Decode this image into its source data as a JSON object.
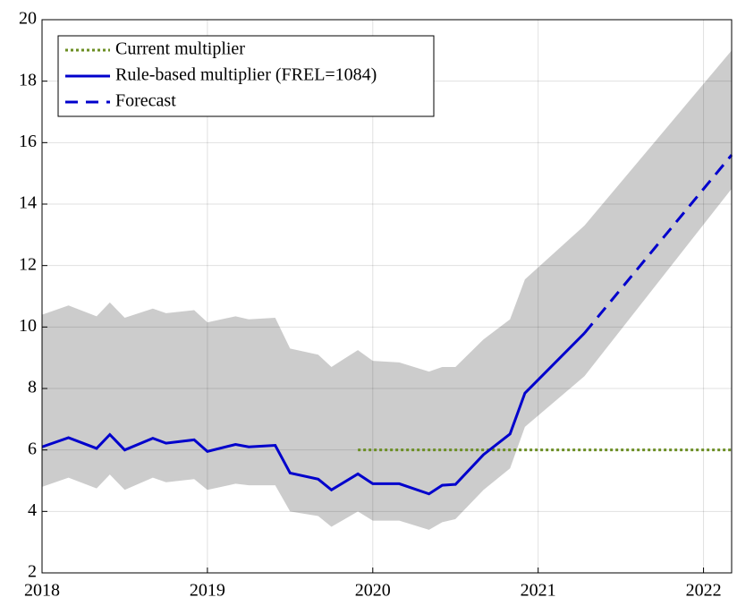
{
  "chart_data": {
    "type": "line",
    "x": [
      2018.0,
      2018.16,
      2018.33,
      2018.41,
      2018.5,
      2018.67,
      2018.75,
      2018.92,
      2019.0,
      2019.17,
      2019.25,
      2019.41,
      2019.5,
      2019.67,
      2019.75,
      2019.91,
      2020.0,
      2020.16,
      2020.34,
      2020.42,
      2020.5,
      2020.67,
      2020.83,
      2020.92,
      2021.28,
      2022.17
    ],
    "band": {
      "color": "#cccccc",
      "upper": [
        10.4,
        10.7,
        10.35,
        10.8,
        10.3,
        10.6,
        10.45,
        10.55,
        10.15,
        10.35,
        10.25,
        10.3,
        9.3,
        9.1,
        8.7,
        9.25,
        8.9,
        8.85,
        8.55,
        8.7,
        8.7,
        9.6,
        10.25,
        11.55,
        13.3,
        19.0
      ],
      "lower": [
        4.8,
        5.1,
        4.75,
        5.2,
        4.7,
        5.1,
        4.95,
        5.05,
        4.7,
        4.9,
        4.85,
        4.85,
        4.0,
        3.85,
        3.5,
        4.0,
        3.7,
        3.7,
        3.4,
        3.65,
        3.75,
        4.7,
        5.4,
        6.75,
        8.4,
        14.5
      ]
    },
    "series": [
      {
        "name": "Current multiplier",
        "color": "#6b8e23",
        "style": "dotted",
        "values": [
          null,
          null,
          null,
          null,
          null,
          null,
          null,
          null,
          null,
          null,
          null,
          null,
          null,
          null,
          null,
          6,
          6,
          6,
          6,
          6,
          6,
          6,
          6,
          6,
          6,
          6
        ]
      },
      {
        "name": "Rule-based multiplier (FREL=1084)",
        "color": "#0000cc",
        "style": "solid",
        "values": [
          6.1,
          6.4,
          6.05,
          6.5,
          6.0,
          6.38,
          6.22,
          6.33,
          5.95,
          6.18,
          6.1,
          6.15,
          5.25,
          5.05,
          4.7,
          5.22,
          4.9,
          4.9,
          4.57,
          4.85,
          4.88,
          5.85,
          6.52,
          7.85,
          9.8,
          null
        ]
      },
      {
        "name": "Forecast",
        "color": "#0000cc",
        "style": "dashed",
        "values": [
          null,
          null,
          null,
          null,
          null,
          null,
          null,
          null,
          null,
          null,
          null,
          null,
          null,
          null,
          null,
          null,
          null,
          null,
          null,
          null,
          null,
          null,
          null,
          null,
          9.8,
          15.6
        ]
      }
    ],
    "xlim": [
      2018,
      2022.17
    ],
    "xticks": [
      2018,
      2019,
      2020,
      2021,
      2022
    ],
    "ylim": [
      2,
      20
    ],
    "yticks": [
      2,
      4,
      6,
      8,
      10,
      12,
      14,
      16,
      18,
      20
    ],
    "grid": true,
    "legend": "upper-left"
  }
}
